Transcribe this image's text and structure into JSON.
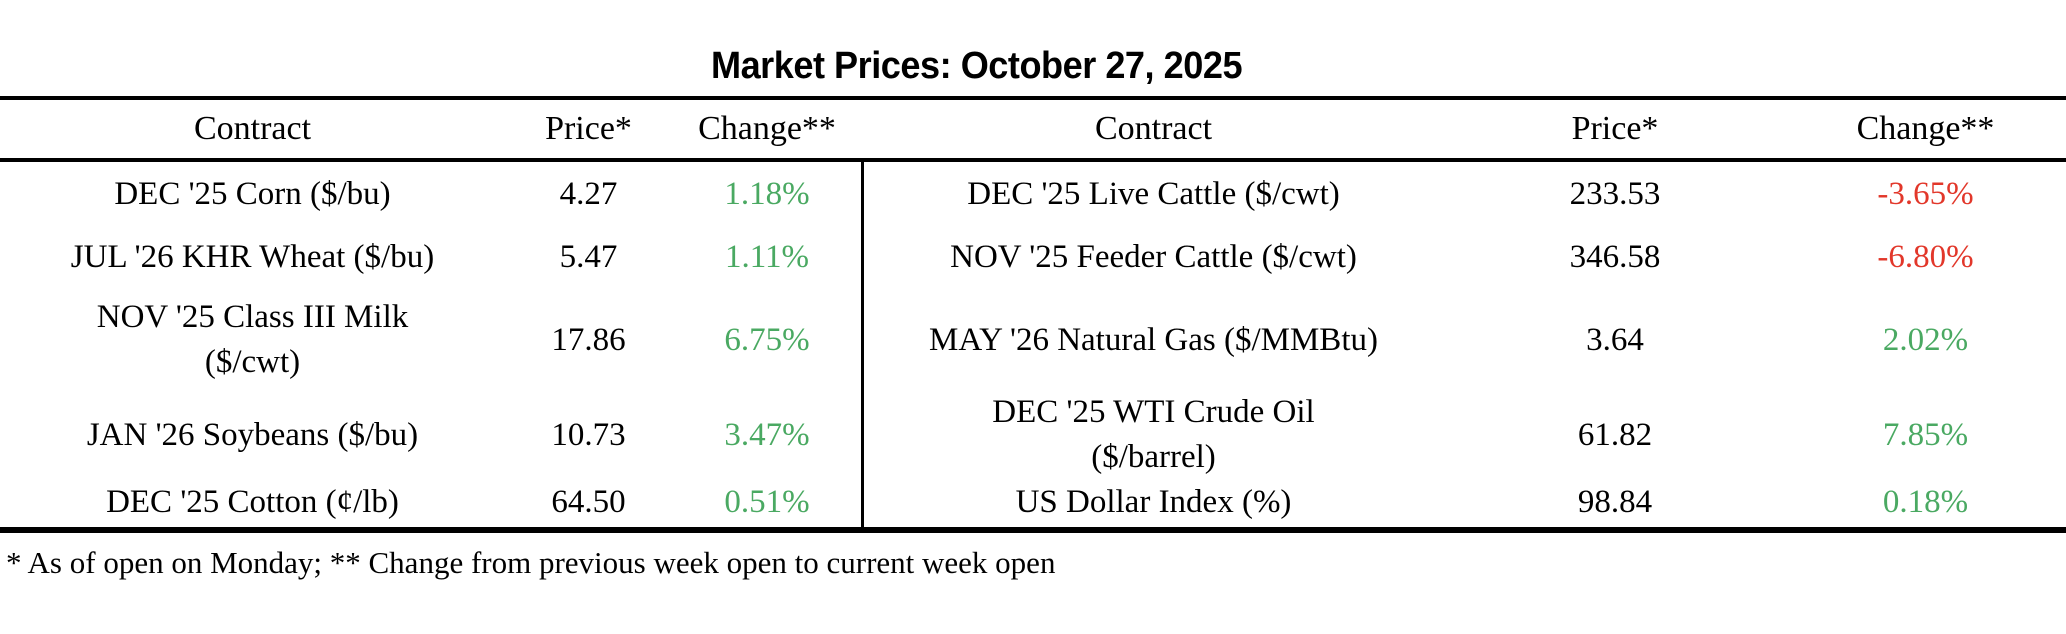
{
  "title": "Market Prices: October 27, 2025",
  "footnote": "* As of open on Monday; ** Change from previous week open to current week open",
  "colors": {
    "positive_change": "#4aa962",
    "negative_change": "#e2372a",
    "text": "#000000",
    "rule": "#000000"
  },
  "table": {
    "headers": {
      "contract_left": "Contract",
      "price_left": "Price*",
      "change_left": "Change**",
      "contract_right": "Contract",
      "price_right": "Price*",
      "change_right": "Change**"
    },
    "rows": [
      {
        "left": {
          "contract": "DEC '25 Corn ($/bu)",
          "price": "4.27",
          "change": "1.18%"
        },
        "right": {
          "contract": "DEC '25 Live Cattle ($/cwt)",
          "price": "233.53",
          "change": "-3.65%"
        }
      },
      {
        "left": {
          "contract": "JUL '26 KHR Wheat ($/bu)",
          "price": "5.47",
          "change": "1.11%"
        },
        "right": {
          "contract": "NOV '25 Feeder Cattle ($/cwt)",
          "price": "346.58",
          "change": "-6.80%"
        }
      },
      {
        "left": {
          "contract": "NOV '25 Class III Milk\n($/cwt)",
          "price": "17.86",
          "change": "6.75%"
        },
        "right": {
          "contract": "MAY '26 Natural Gas ($/MMBtu)",
          "price": "3.64",
          "change": "2.02%"
        }
      },
      {
        "left": {
          "contract": "JAN '26 Soybeans ($/bu)",
          "price": "10.73",
          "change": "3.47%"
        },
        "right": {
          "contract": "DEC '25 WTI Crude Oil\n($/barrel)",
          "price": "61.82",
          "change": "7.85%"
        }
      },
      {
        "left": {
          "contract": "DEC '25 Cotton (¢/lb)",
          "price": "64.50",
          "change": "0.51%"
        },
        "right": {
          "contract": "US Dollar Index (%)",
          "price": "98.84",
          "change": "0.18%"
        }
      }
    ]
  },
  "chart_data": {
    "type": "table",
    "title": "Market Prices: October 27, 2025",
    "columns": [
      "Contract",
      "Price*",
      "Change**",
      "Contract",
      "Price*",
      "Change**"
    ],
    "rows": [
      [
        "DEC '25 Corn ($/bu)",
        4.27,
        "1.18%",
        "DEC '25 Live Cattle ($/cwt)",
        233.53,
        "-3.65%"
      ],
      [
        "JUL '26 KHR Wheat ($/bu)",
        5.47,
        "1.11%",
        "NOV '25 Feeder Cattle ($/cwt)",
        346.58,
        "-6.80%"
      ],
      [
        "NOV '25 Class III Milk ($/cwt)",
        17.86,
        "6.75%",
        "MAY '26 Natural Gas ($/MMBtu)",
        3.64,
        "2.02%"
      ],
      [
        "JAN '26 Soybeans ($/bu)",
        10.73,
        "3.47%",
        "DEC '25 WTI Crude Oil ($/barrel)",
        61.82,
        "7.85%"
      ],
      [
        "DEC '25 Cotton (¢/lb)",
        64.5,
        "0.51%",
        "US Dollar Index (%)",
        98.84,
        "0.18%"
      ]
    ],
    "change_color_rule": "negative values red (#e2372a), positive values green (#4aa962)",
    "footnote": "* As of open on Monday; ** Change from previous week open to current week open"
  }
}
